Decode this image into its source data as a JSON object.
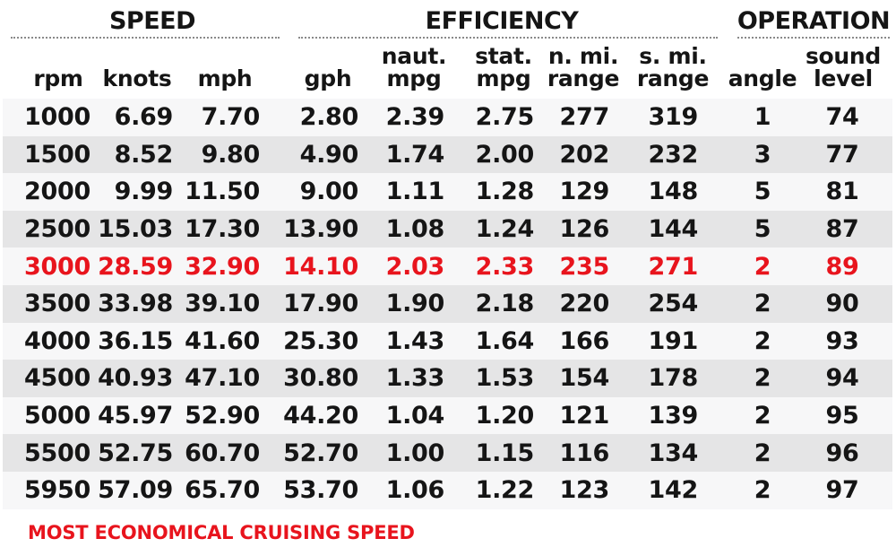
{
  "groups": [
    {
      "label": "SPEED"
    },
    {
      "label": "EFFICIENCY"
    },
    {
      "label": "OPERATION"
    }
  ],
  "columns": [
    {
      "line1": "",
      "line2": "rpm"
    },
    {
      "line1": "",
      "line2": "knots"
    },
    {
      "line1": "",
      "line2": "mph"
    },
    {
      "line1": "",
      "line2": "gph"
    },
    {
      "line1": "naut.",
      "line2": "mpg"
    },
    {
      "line1": "stat.",
      "line2": "mpg"
    },
    {
      "line1": "n. mi.",
      "line2": "range"
    },
    {
      "line1": "s. mi.",
      "line2": "range"
    },
    {
      "line1": "",
      "line2": "angle"
    },
    {
      "line1": "sound",
      "line2": "level"
    }
  ],
  "rows": [
    [
      "1000",
      "6.69",
      "7.70",
      "2.80",
      "2.39",
      "2.75",
      "277",
      "319",
      "1",
      "74"
    ],
    [
      "1500",
      "8.52",
      "9.80",
      "4.90",
      "1.74",
      "2.00",
      "202",
      "232",
      "3",
      "77"
    ],
    [
      "2000",
      "9.99",
      "11.50",
      "9.00",
      "1.11",
      "1.28",
      "129",
      "148",
      "5",
      "81"
    ],
    [
      "2500",
      "15.03",
      "17.30",
      "13.90",
      "1.08",
      "1.24",
      "126",
      "144",
      "5",
      "87"
    ],
    [
      "3000",
      "28.59",
      "32.90",
      "14.10",
      "2.03",
      "2.33",
      "235",
      "271",
      "2",
      "89"
    ],
    [
      "3500",
      "33.98",
      "39.10",
      "17.90",
      "1.90",
      "2.18",
      "220",
      "254",
      "2",
      "90"
    ],
    [
      "4000",
      "36.15",
      "41.60",
      "25.30",
      "1.43",
      "1.64",
      "166",
      "191",
      "2",
      "93"
    ],
    [
      "4500",
      "40.93",
      "47.10",
      "30.80",
      "1.33",
      "1.53",
      "154",
      "178",
      "2",
      "94"
    ],
    [
      "5000",
      "45.97",
      "52.90",
      "44.20",
      "1.04",
      "1.20",
      "121",
      "139",
      "2",
      "95"
    ],
    [
      "5500",
      "52.75",
      "60.70",
      "52.70",
      "1.00",
      "1.15",
      "116",
      "134",
      "2",
      "96"
    ],
    [
      "5950",
      "57.09",
      "65.70",
      "53.70",
      "1.06",
      "1.22",
      "123",
      "142",
      "2",
      "97"
    ]
  ],
  "highlight_row_index": 4,
  "note": "MOST ECONOMICAL CRUISING SPEED",
  "colors": {
    "highlight": "#e8141d",
    "text": "#151515",
    "row_light": "#f7f7f8",
    "row_dark": "#e5e5e6"
  }
}
